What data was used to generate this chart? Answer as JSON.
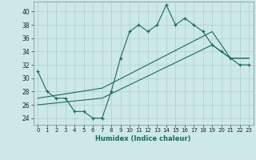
{
  "xlabel": "Humidex (Indice chaleur)",
  "bg_color": "#cde8e8",
  "grid_color": "#aacfcf",
  "line_color": "#1a6b5a",
  "xlim": [
    -0.5,
    23.5
  ],
  "ylim": [
    23.0,
    41.5
  ],
  "xticks": [
    0,
    1,
    2,
    3,
    4,
    5,
    6,
    7,
    8,
    9,
    10,
    11,
    12,
    13,
    14,
    15,
    16,
    17,
    18,
    19,
    20,
    21,
    22,
    23
  ],
  "yticks": [
    24,
    26,
    28,
    30,
    32,
    34,
    36,
    38,
    40
  ],
  "line1_x": [
    0,
    1,
    2,
    3,
    4,
    5,
    6,
    7,
    8,
    9,
    10,
    11,
    12,
    13,
    14,
    15,
    16,
    17,
    18,
    19,
    20,
    21,
    22,
    23
  ],
  "line1_y": [
    31,
    28,
    27,
    27,
    25,
    25,
    24,
    24,
    28,
    33,
    37,
    38,
    37,
    38,
    41,
    38,
    39,
    38,
    37,
    35,
    34,
    33,
    32,
    32
  ],
  "line2_x": [
    0,
    7,
    19,
    21,
    22,
    23
  ],
  "line2_y": [
    26,
    27,
    35,
    33,
    33,
    33
  ],
  "line3_x": [
    0,
    7,
    19,
    21,
    22,
    23
  ],
  "line3_y": [
    27,
    28.5,
    37,
    33,
    33,
    33
  ]
}
